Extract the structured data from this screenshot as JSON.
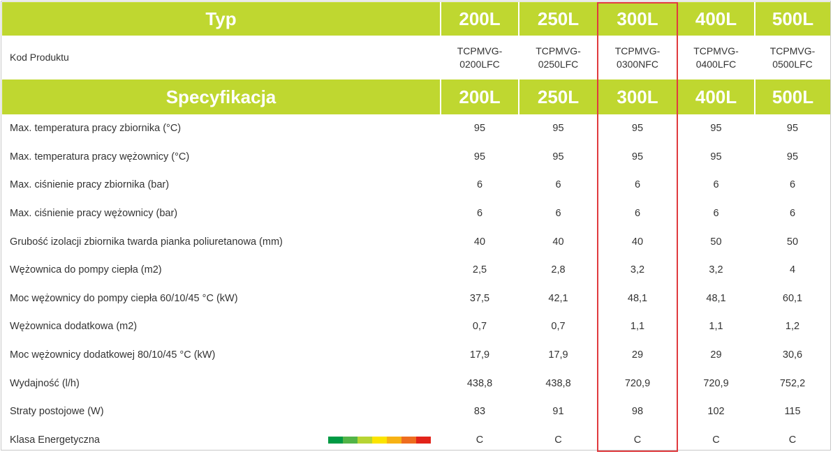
{
  "header": {
    "title": "Typ",
    "sizes": [
      "200L",
      "250L",
      "300L",
      "400L",
      "500L"
    ]
  },
  "product_code": {
    "label": "Kod Produktu",
    "codes": [
      [
        "TCPMVG-",
        "0200LFC"
      ],
      [
        "TCPMVG-",
        "0250LFC"
      ],
      [
        "TCPMVG-",
        "0300NFC"
      ],
      [
        "TCPMVG-",
        "0400LFC"
      ],
      [
        "TCPMVG-",
        "0500LFC"
      ]
    ]
  },
  "spec_header": {
    "title": "Specyfikacja",
    "sizes": [
      "200L",
      "250L",
      "300L",
      "400L",
      "500L"
    ]
  },
  "rows": [
    {
      "label": "Max. temperatura pracy zbiornika (°C)",
      "values": [
        "95",
        "95",
        "95",
        "95",
        "95"
      ]
    },
    {
      "label": "Max. temperatura pracy wężownicy (°C)",
      "values": [
        "95",
        "95",
        "95",
        "95",
        "95"
      ]
    },
    {
      "label": "Max. ciśnienie pracy zbiornika (bar)",
      "values": [
        "6",
        "6",
        "6",
        "6",
        "6"
      ]
    },
    {
      "label": "Max. ciśnienie pracy wężownicy (bar)",
      "values": [
        "6",
        "6",
        "6",
        "6",
        "6"
      ]
    },
    {
      "label": "Grubość izolacji zbiornika twarda pianka poliuretanowa  (mm)",
      "values": [
        "40",
        "40",
        "40",
        "50",
        "50"
      ]
    },
    {
      "label": "Wężownica do pompy ciepła (m2)",
      "values": [
        "2,5",
        "2,8",
        "3,2",
        "3,2",
        "4"
      ]
    },
    {
      "label": "Moc wężownicy do pompy ciepła  60/10/45 °C (kW)",
      "values": [
        "37,5",
        "42,1",
        "48,1",
        "48,1",
        "60,1"
      ]
    },
    {
      "label": "Wężownica dodatkowa (m2)",
      "values": [
        "0,7",
        "0,7",
        "1,1",
        "1,1",
        "1,2"
      ]
    },
    {
      "label": "Moc wężownicy dodatkowej 80/10/45 °C (kW)",
      "values": [
        "17,9",
        "17,9",
        "29",
        "29",
        "30,6"
      ]
    },
    {
      "label": "Wydajność (l/h)",
      "values": [
        "438,8",
        "438,8",
        "720,9",
        "720,9",
        "752,2"
      ]
    },
    {
      "label": "Straty postojowe (W)",
      "values": [
        "83",
        "91",
        "98",
        "102",
        "115"
      ]
    },
    {
      "label": "Klasa Energetyczna",
      "values": [
        "C",
        "C",
        "C",
        "C",
        "C"
      ]
    }
  ],
  "energy_scale_colors": [
    "#009a44",
    "#52b447",
    "#b7d433",
    "#fbe400",
    "#f7b214",
    "#ee6d1f",
    "#e2231a"
  ],
  "colors": {
    "header_green": "#bfd730",
    "highlight_red": "#e03a3e"
  }
}
